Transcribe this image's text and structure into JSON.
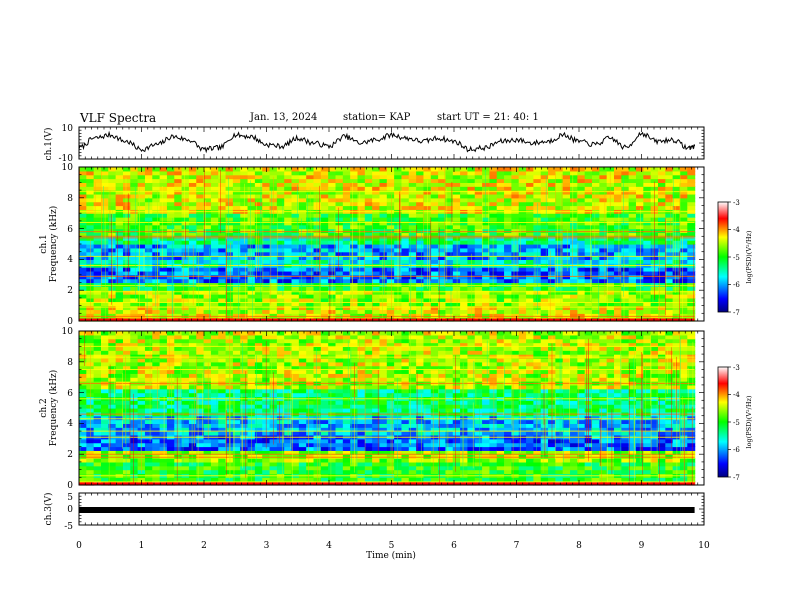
{
  "header": {
    "title": "VLF Spectra",
    "date": "Jan. 13, 2024",
    "station": "station= KAP",
    "start": "start  UT =  21: 40: 1"
  },
  "chart_data": [
    {
      "type": "line",
      "panel": "ch1-waveform",
      "ylabel": "ch.1(V)",
      "ylim": [
        -10,
        10
      ],
      "yticks": [
        "10",
        "-10"
      ],
      "xlim": [
        0,
        10
      ],
      "x": [
        0,
        0.25,
        0.5,
        0.75,
        1.0,
        1.25,
        1.5,
        1.75,
        2.0,
        2.25,
        2.5,
        2.75,
        3.0,
        3.25,
        3.5,
        3.75,
        4.0,
        4.25,
        4.5,
        4.75,
        5.0,
        5.25,
        5.5,
        5.75,
        6.0,
        6.25,
        6.5,
        6.75,
        7.0,
        7.25,
        7.5,
        7.75,
        8.0,
        8.25,
        8.5,
        8.75,
        9.0,
        9.25,
        9.5,
        9.75,
        9.85
      ],
      "values": [
        -3,
        3,
        5,
        1,
        -4,
        -1,
        4,
        2,
        -4,
        -3,
        5,
        4,
        -1,
        -2,
        3,
        0,
        -2,
        4,
        0,
        2,
        5,
        3,
        1,
        3,
        1,
        -4,
        -3,
        1,
        2,
        0,
        1,
        5,
        1,
        -1,
        3,
        -3,
        6,
        1,
        2,
        -3,
        -2
      ]
    },
    {
      "type": "heatmap",
      "panel": "ch1-spectrogram",
      "ylabel": "ch.1 Frequency (kHz)",
      "ylabel_line1": "ch.1",
      "ylabel_line2": "Frequency (kHz)",
      "ylim": [
        0,
        10
      ],
      "yticks": [
        "0",
        "2",
        "4",
        "6",
        "8",
        "10"
      ],
      "xlim": [
        0,
        9.85
      ],
      "colorbar": {
        "label": "log(PSD)(V²/Hz)",
        "range": [
          -7,
          -3
        ],
        "ticks": [
          "-3",
          "-4",
          "-5",
          "-6",
          "-7"
        ]
      },
      "bands_khz": [
        {
          "range": [
            0,
            1.0
          ],
          "level": -4.4
        },
        {
          "range": [
            1.0,
            2.1
          ],
          "level": -4.6
        },
        {
          "range": [
            2.1,
            2.5
          ],
          "level": -5.0
        },
        {
          "range": [
            2.5,
            3.4
          ],
          "level": -6.2
        },
        {
          "range": [
            3.4,
            4.1
          ],
          "level": -5.6
        },
        {
          "range": [
            4.1,
            5.0
          ],
          "level": -6.0
        },
        {
          "range": [
            5.0,
            5.6
          ],
          "level": -5.4
        },
        {
          "range": [
            5.6,
            7.0
          ],
          "level": -4.9
        },
        {
          "range": [
            7.0,
            10
          ],
          "level": -4.4
        }
      ],
      "lines_khz": [
        0.3,
        0.9,
        1.2,
        1.9,
        2.3,
        2.9,
        3.6,
        4.2,
        5.4,
        5.5,
        5.8,
        6.4,
        7.1,
        8.4
      ]
    },
    {
      "type": "heatmap",
      "panel": "ch2-spectrogram",
      "ylabel": "ch.2 Frequency (kHz)",
      "ylabel_line1": "ch.2",
      "ylabel_line2": "Frequency (kHz)",
      "ylim": [
        0,
        10
      ],
      "yticks": [
        "0",
        "2",
        "4",
        "6",
        "8",
        "10"
      ],
      "xlim": [
        0,
        9.85
      ],
      "colorbar": {
        "label": "log(PSD)(V²/Hz)",
        "range": [
          -7,
          -3
        ],
        "ticks": [
          "-3",
          "-4",
          "-5",
          "-6",
          "-7"
        ]
      },
      "bands_khz": [
        {
          "range": [
            0,
            0.3
          ],
          "level": -3.6
        },
        {
          "range": [
            0.3,
            1.6
          ],
          "level": -5.0
        },
        {
          "range": [
            1.6,
            2.2
          ],
          "level": -4.6
        },
        {
          "range": [
            2.2,
            3.2
          ],
          "level": -6.2
        },
        {
          "range": [
            3.2,
            4.4
          ],
          "level": -5.9
        },
        {
          "range": [
            4.4,
            6.2
          ],
          "level": -5.3
        },
        {
          "range": [
            6.2,
            10
          ],
          "level": -4.5
        }
      ],
      "lines_khz": [
        0.2,
        0.6,
        1.8,
        2.0,
        3.1,
        3.5,
        4.3,
        4.6,
        5.6,
        6.6,
        7.5,
        8.3,
        9.0
      ]
    },
    {
      "type": "line",
      "panel": "ch3-waveform",
      "ylabel": "ch.3(V)",
      "ylim": [
        -5,
        5
      ],
      "yticks": [
        "5",
        "0",
        "-5"
      ],
      "xlim": [
        0,
        10
      ],
      "x": [
        0,
        9.85
      ],
      "values": [
        0,
        0
      ],
      "xlabel": "Time (min)",
      "xticks": [
        "0",
        "1",
        "2",
        "3",
        "4",
        "5",
        "6",
        "7",
        "8",
        "9",
        "10"
      ]
    }
  ]
}
